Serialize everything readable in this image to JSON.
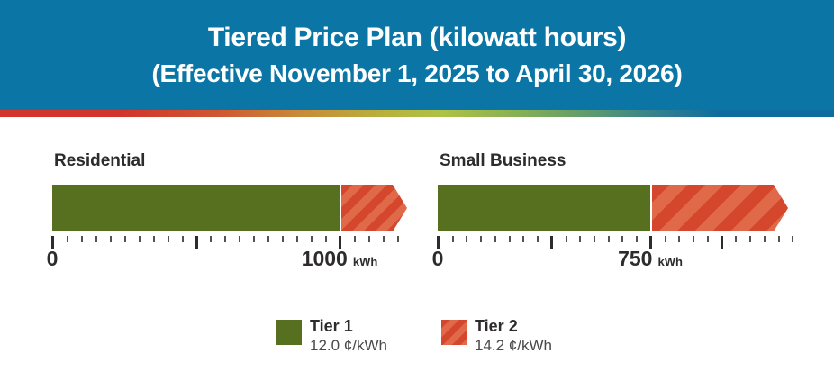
{
  "header": {
    "title": "Tiered Price Plan (kilowatt hours)",
    "subtitle": "(Effective November 1, 2025 to April 30, 2026)"
  },
  "charts": [
    {
      "title": "Residential",
      "zero_label": "0",
      "threshold_label": "1000",
      "unit_label": "kWh"
    },
    {
      "title": "Small Business",
      "zero_label": "0",
      "threshold_label": "750",
      "unit_label": "kWh"
    }
  ],
  "legend": {
    "items": [
      {
        "name": "Tier 1",
        "price": "12.0 ¢/kWh"
      },
      {
        "name": "Tier 2",
        "price": "14.2 ¢/kWh"
      }
    ]
  },
  "colors": {
    "header_bg": "#0b76a6",
    "tier1_green": "#57701f",
    "tier2_red": "#d5472d",
    "tier2_red_stripe": "#e0694a",
    "text_dark": "#2e2b2c"
  },
  "chart_data": {
    "type": "bar",
    "orientation": "horizontal",
    "title": "Tiered Price Plan (kilowatt hours)",
    "subtitle": "(Effective November 1, 2025 to April 30, 2026)",
    "unit": "kWh",
    "groups": [
      {
        "name": "Residential",
        "tier1_limit_kwh": 1000,
        "axis_major_ticks_kwh": [
          0,
          500,
          1000
        ],
        "axis_minor_tick_step_kwh": 50,
        "tier2_extends_beyond_limit": true
      },
      {
        "name": "Small Business",
        "tier1_limit_kwh": 750,
        "axis_major_ticks_kwh": [
          0,
          375,
          750
        ],
        "axis_minor_tick_step_kwh": 50,
        "tier2_extends_beyond_limit": true
      }
    ],
    "tiers": [
      {
        "name": "Tier 1",
        "price_cents_per_kwh": 12.0,
        "price_label": "12.0 ¢/kWh",
        "style": "solid-green"
      },
      {
        "name": "Tier 2",
        "price_cents_per_kwh": 14.2,
        "price_label": "14.2 ¢/kWh",
        "style": "striped-red-arrow"
      }
    ],
    "legend_position": "bottom-center",
    "grid": false
  }
}
